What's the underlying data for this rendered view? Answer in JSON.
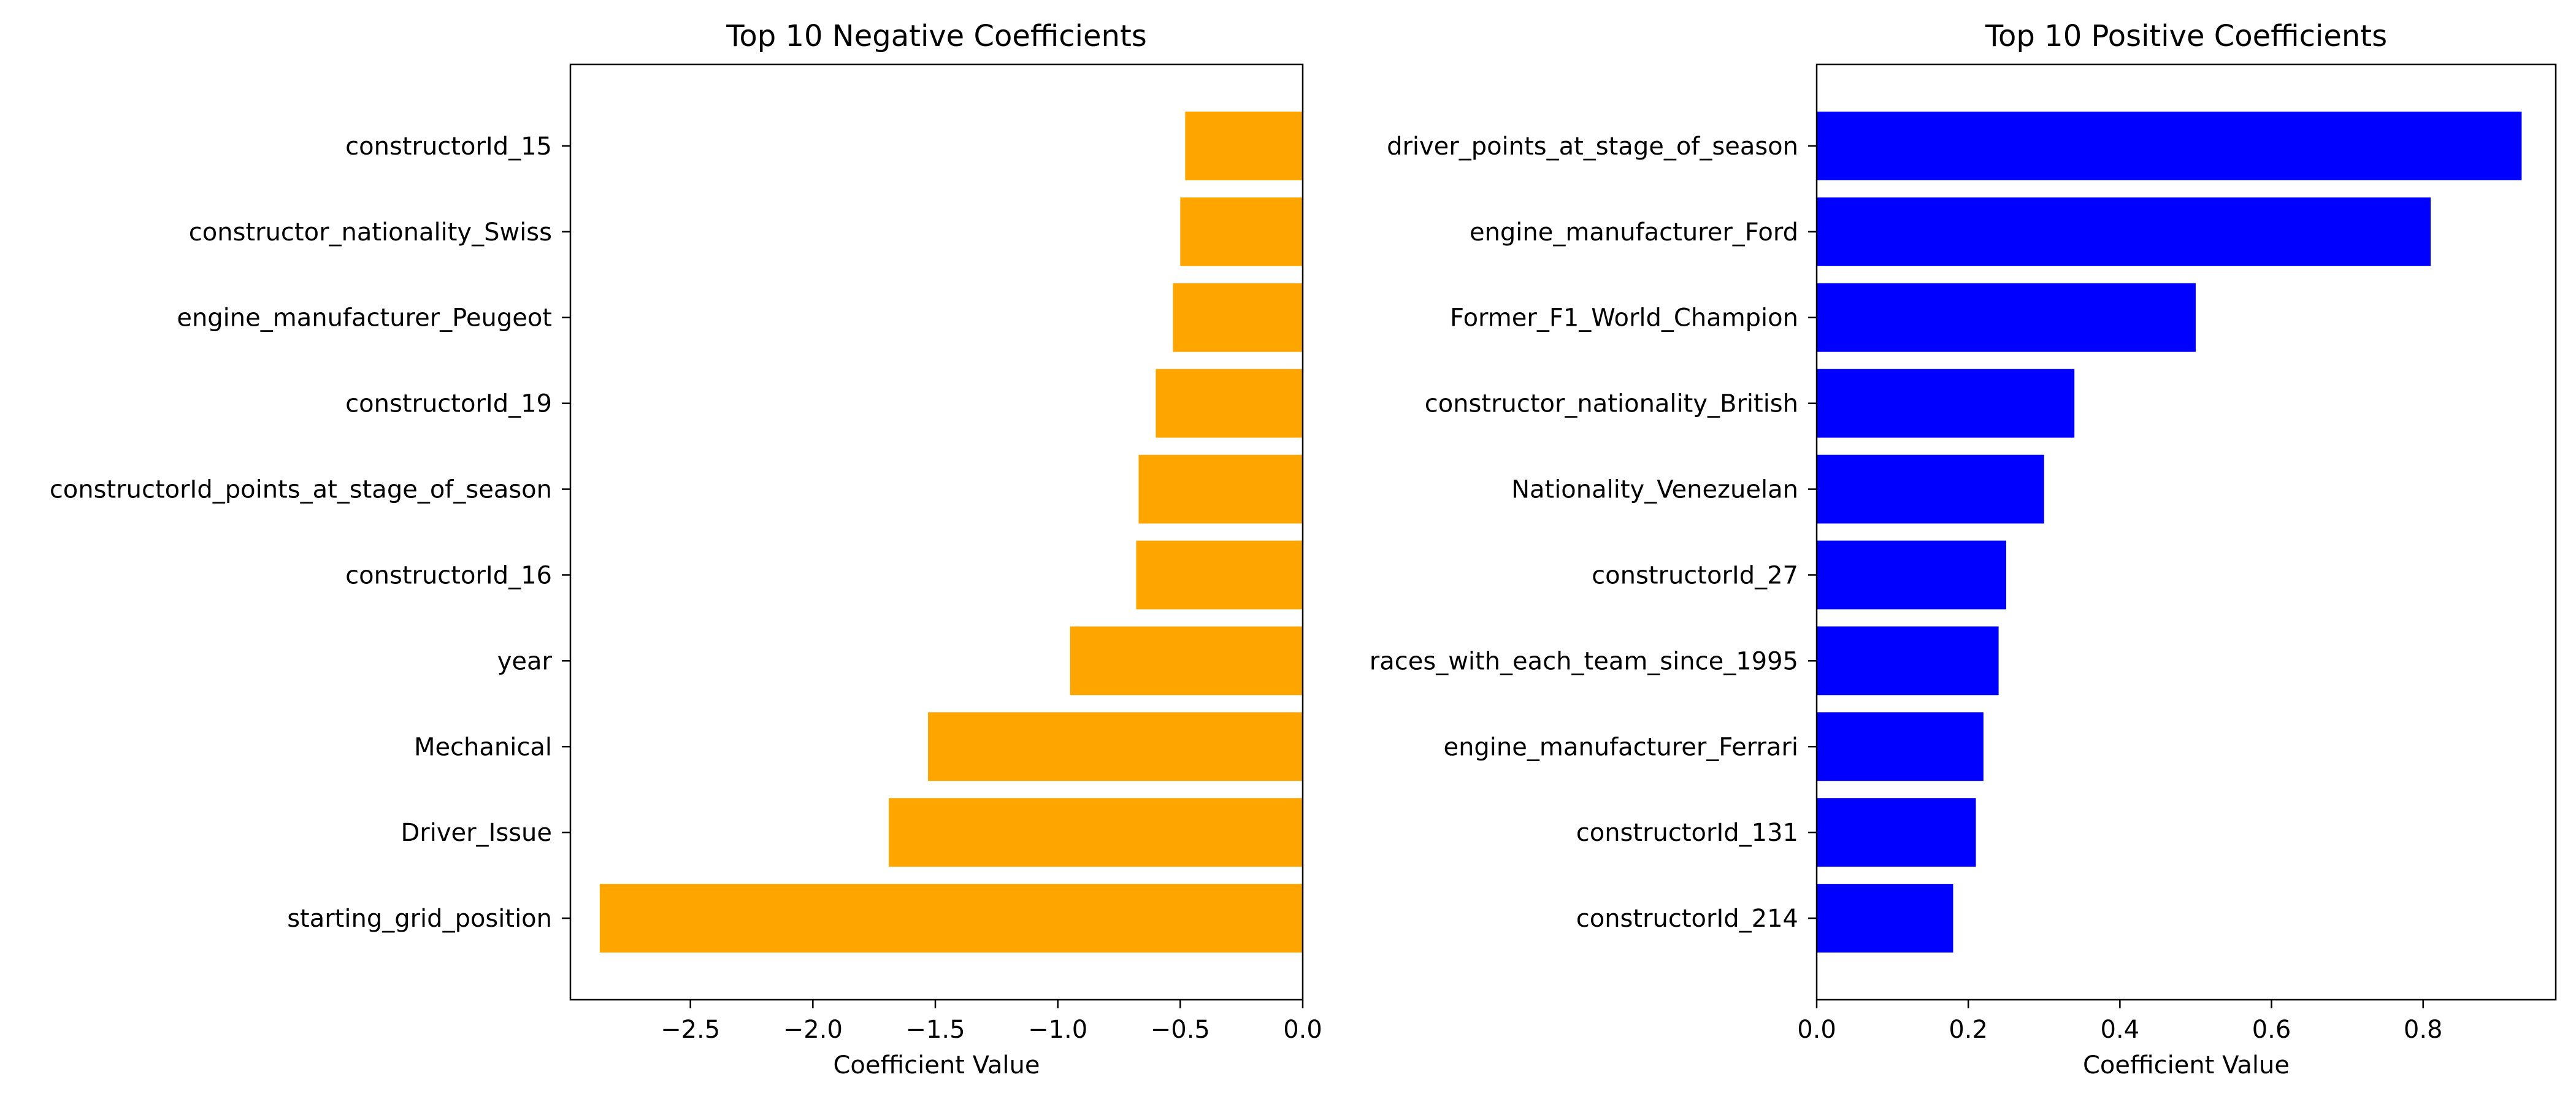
{
  "chart_data": [
    {
      "type": "bar",
      "orientation": "horizontal",
      "title": "Top 10 Negative Coefficients",
      "xlabel": "Coefficient Value",
      "ylabel": "",
      "xlim": [
        -2.99,
        0.0
      ],
      "xticks": [
        -2.5,
        -2.0,
        -1.5,
        -1.0,
        -0.5,
        0.0
      ],
      "xtick_labels": [
        "−2.5",
        "−2.0",
        "−1.5",
        "−1.0",
        "−0.5",
        "0.0"
      ],
      "categories": [
        "constructorId_15",
        "constructor_nationality_Swiss",
        "engine_manufacturer_Peugeot",
        "constructorId_19",
        "constructorId_points_at_stage_of_season",
        "constructorId_16",
        "year",
        "Mechanical",
        "Driver_Issue",
        "starting_grid_position"
      ],
      "values": [
        -0.48,
        -0.5,
        -0.53,
        -0.6,
        -0.67,
        -0.68,
        -0.95,
        -1.53,
        -1.69,
        -2.87
      ],
      "color": "#FFA500",
      "grid": false,
      "legend": "none"
    },
    {
      "type": "bar",
      "orientation": "horizontal",
      "title": "Top 10 Positive Coefficients",
      "xlabel": "Coefficient Value",
      "ylabel": "",
      "xlim": [
        0.0,
        0.975
      ],
      "xticks": [
        0.0,
        0.2,
        0.4,
        0.6,
        0.8
      ],
      "xtick_labels": [
        "0.0",
        "0.2",
        "0.4",
        "0.6",
        "0.8"
      ],
      "categories": [
        "driver_points_at_stage_of_season",
        "engine_manufacturer_Ford",
        "Former_F1_World_Champion",
        "constructor_nationality_British",
        "Nationality_Venezuelan",
        "constructorId_27",
        "races_with_each_team_since_1995",
        "engine_manufacturer_Ferrari",
        "constructorId_131",
        "constructorId_214"
      ],
      "values": [
        0.93,
        0.81,
        0.5,
        0.34,
        0.3,
        0.25,
        0.24,
        0.22,
        0.21,
        0.18
      ],
      "color": "#0000FF",
      "grid": false,
      "legend": "none"
    }
  ]
}
